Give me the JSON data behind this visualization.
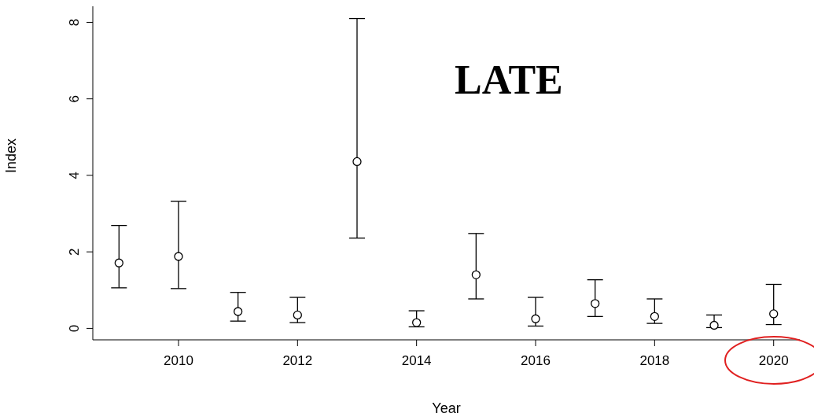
{
  "chart_data": {
    "type": "scatter",
    "xlabel": "Year",
    "ylabel": "Index",
    "annotations": [
      "LATE"
    ],
    "x": [
      2009,
      2010,
      2011,
      2012,
      2013,
      2014,
      2015,
      2016,
      2017,
      2018,
      2019,
      2020
    ],
    "values": [
      1.71,
      1.88,
      0.44,
      0.35,
      4.36,
      0.15,
      1.4,
      0.25,
      0.65,
      0.31,
      0.08,
      0.38
    ],
    "errors": [
      [
        1.06,
        2.69
      ],
      [
        1.04,
        3.32
      ],
      [
        0.19,
        0.94
      ],
      [
        0.15,
        0.81
      ],
      [
        2.36,
        8.1
      ],
      [
        0.04,
        0.46
      ],
      [
        0.77,
        2.48
      ],
      [
        0.06,
        0.81
      ],
      [
        0.31,
        1.27
      ],
      [
        0.13,
        0.77
      ],
      [
        0.02,
        0.35
      ],
      [
        0.1,
        1.15
      ]
    ],
    "color": "#000000",
    "marker": "circle",
    "grid": false,
    "legend": false,
    "xlim": [
      2008.56,
      2020.44
    ],
    "xticks": [
      2010,
      2012,
      2014,
      2016,
      2018,
      2020
    ],
    "ylim": [
      -0.3,
      8.42
    ],
    "yticks": [
      0,
      2,
      4,
      6,
      8
    ]
  }
}
